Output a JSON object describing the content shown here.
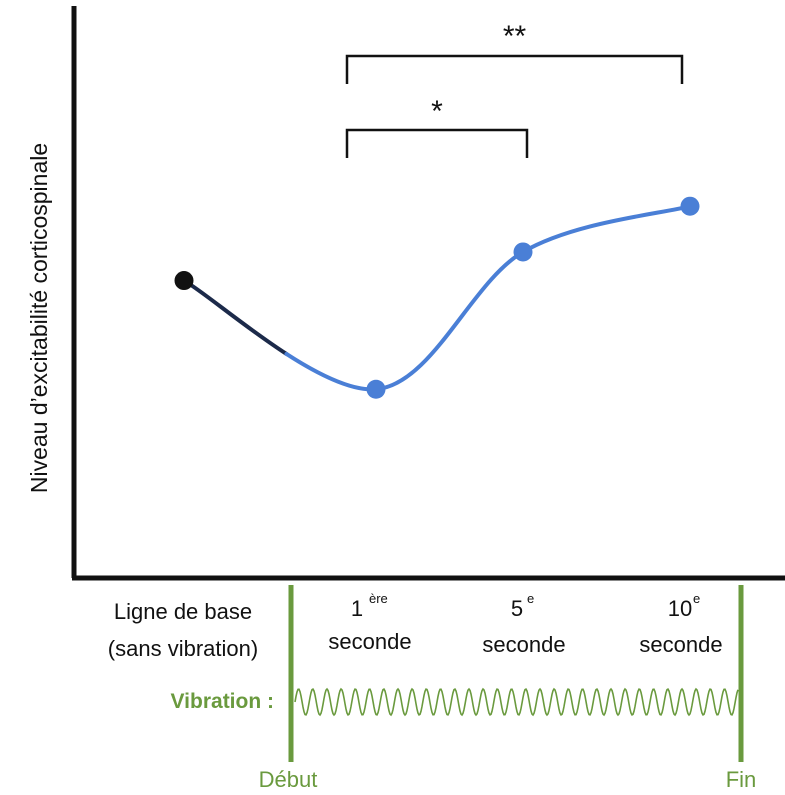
{
  "chart_data": {
    "type": "line",
    "ylabel": "Niveau d’excitabilité corticospinale",
    "categories": [
      {
        "line1": "Ligne de base",
        "line2": "(sans vibration)"
      },
      {
        "prefix": "1",
        "sup": "ère",
        "line2": "seconde"
      },
      {
        "prefix": "5",
        "sup": "e",
        "line2": "seconde"
      },
      {
        "prefix": "10",
        "sup": "e",
        "line2": "seconde"
      }
    ],
    "values": [
      52,
      33,
      57,
      65
    ],
    "ylim": [
      0,
      100
    ],
    "grid": false,
    "significance": [
      {
        "from": 1,
        "to": 2,
        "label": "*"
      },
      {
        "from": 1,
        "to": 3,
        "label": "**"
      }
    ],
    "vibration_label": "Vibration :",
    "start_label": "Début",
    "end_label": "Fin"
  },
  "colors": {
    "baseline_point": "#111111",
    "baseline_line": "#1c2a4a",
    "series": "#4a7fd6",
    "axis": "#111111",
    "vibration": "#6a9a3e"
  }
}
